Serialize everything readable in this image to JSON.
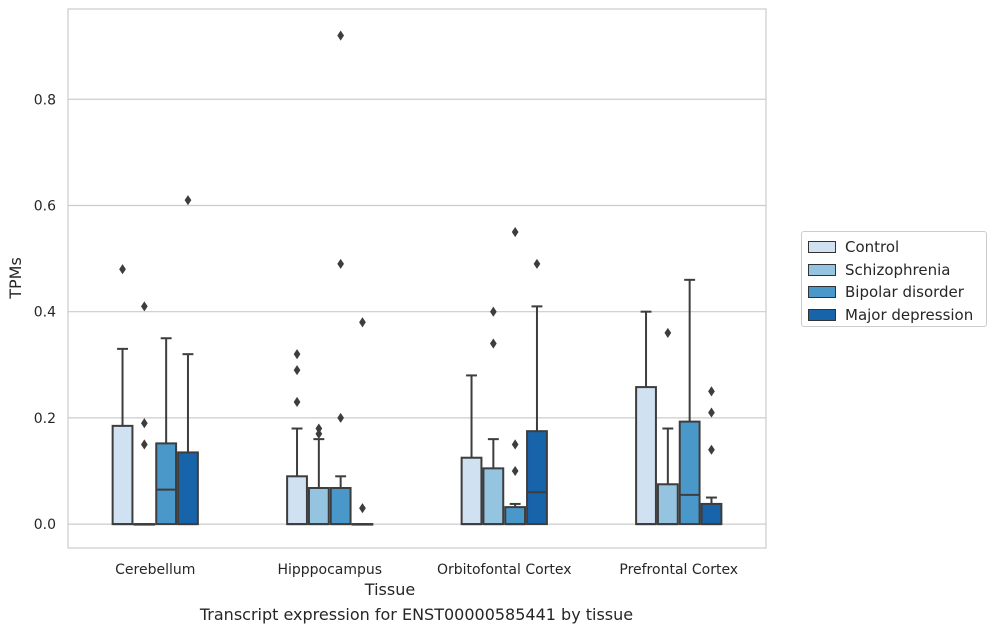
{
  "chart_data": {
    "type": "box",
    "xlabel": "Tissue",
    "ylabel": "TPMs",
    "ylim": [
      -0.045,
      0.97
    ],
    "yticks": [
      0.0,
      0.2,
      0.4,
      0.6,
      0.8
    ],
    "grid": "horizontal",
    "legend_placement": "right",
    "categories": [
      "Cerebellum",
      "Hipppocampus",
      "Orbitofontal Cortex",
      "Prefrontal Cortex"
    ],
    "series": [
      {
        "name": "Control",
        "color": "#d0e1f2",
        "boxes": [
          {
            "whislo": 0.0,
            "q1": 0.0,
            "med": 0.0,
            "q3": 0.185,
            "whishi": 0.33,
            "fliers": [
              0.48
            ]
          },
          {
            "whislo": 0.0,
            "q1": 0.0,
            "med": 0.0,
            "q3": 0.09,
            "whishi": 0.18,
            "fliers": [
              0.23,
              0.29,
              0.32
            ]
          },
          {
            "whislo": 0.0,
            "q1": 0.0,
            "med": 0.0,
            "q3": 0.125,
            "whishi": 0.28,
            "fliers": []
          },
          {
            "whislo": 0.0,
            "q1": 0.0,
            "med": 0.0,
            "q3": 0.258,
            "whishi": 0.4,
            "fliers": []
          }
        ]
      },
      {
        "name": "Schizophrenia",
        "color": "#94c4df",
        "boxes": [
          {
            "whislo": 0.0,
            "q1": 0.0,
            "med": 0.0,
            "q3": 0.0,
            "whishi": 0.0,
            "fliers": [
              0.15,
              0.19,
              0.41
            ]
          },
          {
            "whislo": 0.0,
            "q1": 0.0,
            "med": 0.0,
            "q3": 0.068,
            "whishi": 0.16,
            "fliers": [
              0.17,
              0.18
            ]
          },
          {
            "whislo": 0.0,
            "q1": 0.0,
            "med": 0.0,
            "q3": 0.105,
            "whishi": 0.16,
            "fliers": [
              0.34,
              0.4
            ]
          },
          {
            "whislo": 0.0,
            "q1": 0.0,
            "med": 0.0,
            "q3": 0.075,
            "whishi": 0.18,
            "fliers": [
              0.36
            ]
          }
        ]
      },
      {
        "name": "Bipolar disorder",
        "color": "#4a98c9",
        "boxes": [
          {
            "whislo": 0.0,
            "q1": 0.0,
            "med": 0.065,
            "q3": 0.152,
            "whishi": 0.35,
            "fliers": []
          },
          {
            "whislo": 0.0,
            "q1": 0.0,
            "med": 0.0,
            "q3": 0.068,
            "whishi": 0.09,
            "fliers": [
              0.2,
              0.49,
              0.92
            ]
          },
          {
            "whislo": 0.0,
            "q1": 0.0,
            "med": 0.0,
            "q3": 0.032,
            "whishi": 0.038,
            "fliers": [
              0.1,
              0.15,
              0.55
            ]
          },
          {
            "whislo": 0.0,
            "q1": 0.0,
            "med": 0.055,
            "q3": 0.193,
            "whishi": 0.46,
            "fliers": []
          }
        ]
      },
      {
        "name": "Major depression",
        "color": "#1764ab",
        "boxes": [
          {
            "whislo": 0.0,
            "q1": 0.0,
            "med": 0.0,
            "q3": 0.135,
            "whishi": 0.32,
            "fliers": [
              0.61
            ]
          },
          {
            "whislo": 0.0,
            "q1": 0.0,
            "med": 0.0,
            "q3": 0.0,
            "whishi": 0.0,
            "fliers": [
              0.03,
              0.38
            ]
          },
          {
            "whislo": 0.0,
            "q1": 0.0,
            "med": 0.06,
            "q3": 0.175,
            "whishi": 0.41,
            "fliers": [
              0.49
            ]
          },
          {
            "whislo": 0.0,
            "q1": 0.0,
            "med": 0.0,
            "q3": 0.038,
            "whishi": 0.05,
            "fliers": [
              0.14,
              0.21,
              0.25
            ]
          }
        ]
      }
    ]
  },
  "caption": "Transcript expression for ENST00000585441 by tissue"
}
